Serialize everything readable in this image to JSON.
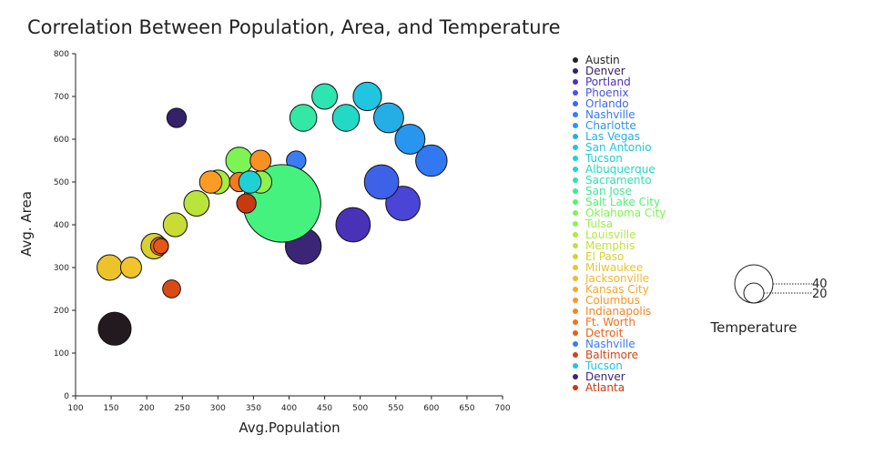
{
  "chart_data": {
    "type": "scatter",
    "title": "Correlation Between Population, Area, and Temperature",
    "xlabel": "Avg.Population",
    "ylabel": "Avg. Area",
    "xlim": [
      100,
      700
    ],
    "ylim": [
      0,
      800
    ],
    "xticks": [
      100,
      150,
      200,
      250,
      300,
      350,
      400,
      450,
      500,
      550,
      600,
      650,
      700
    ],
    "yticks": [
      0,
      100,
      200,
      300,
      400,
      500,
      600,
      700,
      800
    ],
    "size_legend": {
      "title": "Temperature",
      "labels": [
        "40",
        "20"
      ],
      "values": [
        40,
        20
      ]
    },
    "points": [
      {
        "x": 155,
        "y": 157,
        "size": 22,
        "color": "#231a1f"
      },
      {
        "x": 242,
        "y": 650,
        "size": 13,
        "color": "#34216b"
      },
      {
        "x": 420,
        "y": 350,
        "size": 24,
        "color": "#3a2577"
      },
      {
        "x": 490,
        "y": 400,
        "size": 23,
        "color": "#4a32b8"
      },
      {
        "x": 560,
        "y": 450,
        "size": 23,
        "color": "#4a45d6"
      },
      {
        "x": 530,
        "y": 500,
        "size": 23,
        "color": "#3d62e8"
      },
      {
        "x": 600,
        "y": 550,
        "size": 21,
        "color": "#3278f2"
      },
      {
        "x": 410,
        "y": 550,
        "size": 13,
        "color": "#3b7cf3"
      },
      {
        "x": 570,
        "y": 600,
        "size": 20,
        "color": "#2895ef"
      },
      {
        "x": 540,
        "y": 650,
        "size": 20,
        "color": "#24aee6"
      },
      {
        "x": 510,
        "y": 700,
        "size": 19,
        "color": "#20c5df"
      },
      {
        "x": 480,
        "y": 650,
        "size": 18,
        "color": "#22d9c5"
      },
      {
        "x": 450,
        "y": 700,
        "size": 17,
        "color": "#2ee4b0"
      },
      {
        "x": 420,
        "y": 650,
        "size": 18,
        "color": "#33e8a4"
      },
      {
        "x": 390,
        "y": 450,
        "size": 52,
        "color": "#45f27e"
      },
      {
        "x": 330,
        "y": 550,
        "size": 18,
        "color": "#7cf454"
      },
      {
        "x": 360,
        "y": 500,
        "size": 15,
        "color": "#8ef24a"
      },
      {
        "x": 300,
        "y": 500,
        "size": 16,
        "color": "#a7eb3f"
      },
      {
        "x": 270,
        "y": 450,
        "size": 17,
        "color": "#b9e43a"
      },
      {
        "x": 240,
        "y": 400,
        "size": 16,
        "color": "#c8dc35"
      },
      {
        "x": 210,
        "y": 350,
        "size": 17,
        "color": "#d9cf30"
      },
      {
        "x": 148,
        "y": 300,
        "size": 17,
        "color": "#ecc32b"
      },
      {
        "x": 178,
        "y": 300,
        "size": 14,
        "color": "#f2c42b"
      },
      {
        "x": 290,
        "y": 500,
        "size": 15,
        "color": "#fb9b24"
      },
      {
        "x": 360,
        "y": 550,
        "size": 14,
        "color": "#fa8f22"
      },
      {
        "x": 330,
        "y": 500,
        "size": 13,
        "color": "#f47a1e"
      },
      {
        "x": 218,
        "y": 350,
        "size": 12,
        "color": "#ef6a1c"
      },
      {
        "x": 220,
        "y": 350,
        "size": 10,
        "color": "#e65619"
      },
      {
        "x": 235,
        "y": 250,
        "size": 12,
        "color": "#da4a16"
      },
      {
        "x": 340,
        "y": 450,
        "size": 13,
        "color": "#c9390f"
      },
      {
        "x": 345,
        "y": 500,
        "size": 15,
        "color": "#1fd0d6"
      }
    ],
    "legend": [
      {
        "name": "Austin",
        "color": "#222222"
      },
      {
        "name": "Denver",
        "color": "#34216b"
      },
      {
        "name": "Portland",
        "color": "#4a32b8"
      },
      {
        "name": "Phoenix",
        "color": "#4a52e0"
      },
      {
        "name": "Orlando",
        "color": "#3f66ec"
      },
      {
        "name": "Nashville",
        "color": "#377cf2"
      },
      {
        "name": "Charlotte",
        "color": "#2895ef"
      },
      {
        "name": "Las Vegas",
        "color": "#24aee6"
      },
      {
        "name": "San Antonio",
        "color": "#20c5df"
      },
      {
        "name": "Tucson",
        "color": "#20d0d6"
      },
      {
        "name": "Albuquerque",
        "color": "#22d9c5"
      },
      {
        "name": "Sacramento",
        "color": "#2ee4b0"
      },
      {
        "name": "San Jose",
        "color": "#38ec98"
      },
      {
        "name": "Salt Lake City",
        "color": "#55f270"
      },
      {
        "name": "Oklahoma City",
        "color": "#7cf454"
      },
      {
        "name": "Tulsa",
        "color": "#94f048"
      },
      {
        "name": "Louisville",
        "color": "#aeea3e"
      },
      {
        "name": "Memphis",
        "color": "#c2e038"
      },
      {
        "name": "El Paso",
        "color": "#d6d132"
      },
      {
        "name": "Milwaukee",
        "color": "#e8c42d"
      },
      {
        "name": "Jacksonville",
        "color": "#f4b82a"
      },
      {
        "name": "Kansas City",
        "color": "#f9a826"
      },
      {
        "name": "Columbus",
        "color": "#fb9624"
      },
      {
        "name": "Indianapolis",
        "color": "#f78421"
      },
      {
        "name": "Ft. Worth",
        "color": "#f1711e"
      },
      {
        "name": "Detroit",
        "color": "#e95e1a"
      },
      {
        "name": "Nashville",
        "color": "#377cf2"
      },
      {
        "name": "Baltimore",
        "color": "#d54514"
      },
      {
        "name": "Tucson",
        "color": "#20c5df"
      },
      {
        "name": "Denver",
        "color": "#3a2577"
      },
      {
        "name": "Atlanta",
        "color": "#c9390f"
      }
    ]
  }
}
